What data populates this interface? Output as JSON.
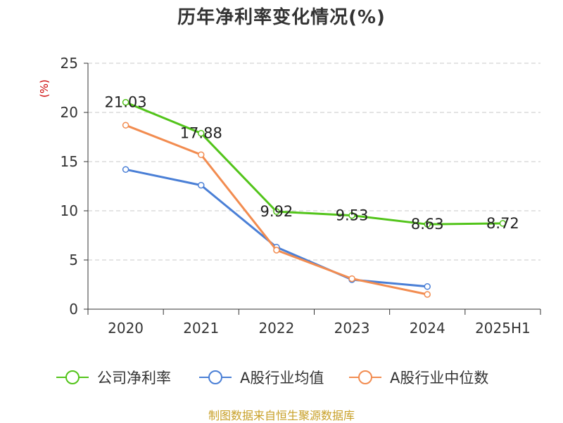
{
  "chart_data": {
    "type": "line",
    "title": "历年净利率变化情况(%)",
    "ylabel": "(%)",
    "xlabel": "",
    "categories": [
      "2020",
      "2021",
      "2022",
      "2023",
      "2024",
      "2025H1"
    ],
    "ylim": [
      0,
      25
    ],
    "yticks": [
      0,
      5,
      10,
      15,
      20,
      25
    ],
    "grid": true,
    "legend_position": "bottom",
    "series": [
      {
        "name": "公司净利率",
        "color": "#52c41a",
        "values": [
          21.03,
          17.88,
          9.92,
          9.53,
          8.63,
          8.72
        ],
        "value_labels": [
          "21.03",
          "17.88",
          "9.92",
          "9.53",
          "8.63",
          "8.72"
        ]
      },
      {
        "name": "A股行业均值",
        "color": "#4a7fd6",
        "values": [
          14.2,
          12.6,
          6.3,
          3.0,
          2.3,
          null
        ]
      },
      {
        "name": "A股行业中位数",
        "color": "#f28c50",
        "values": [
          18.7,
          15.7,
          6.0,
          3.1,
          1.5,
          null
        ]
      }
    ]
  },
  "source_note": "制图数据来自恒生聚源数据库"
}
